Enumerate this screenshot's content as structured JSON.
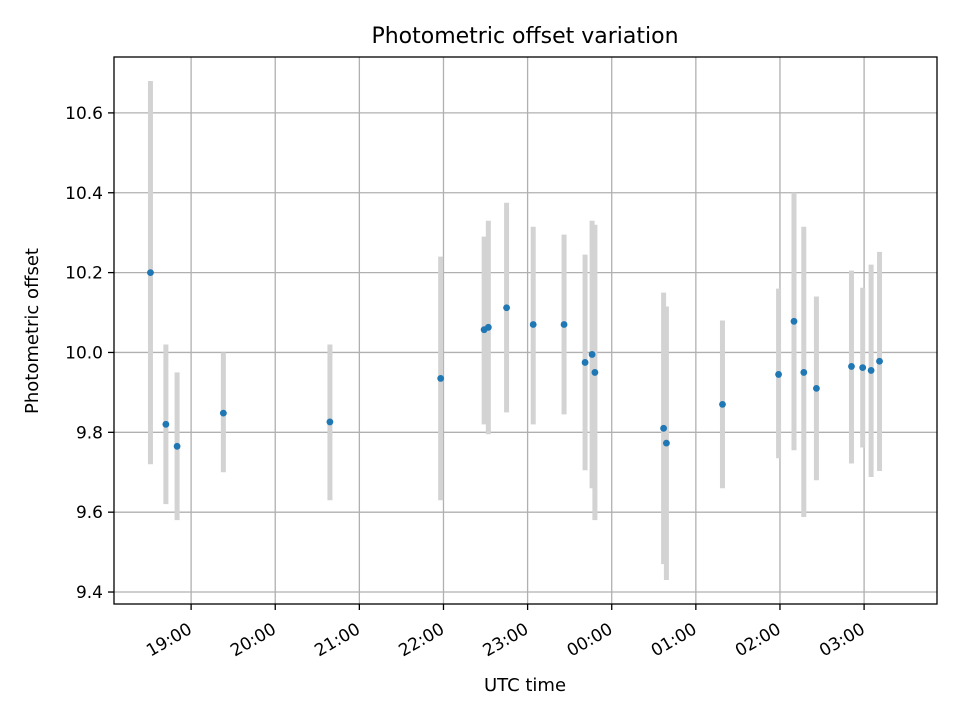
{
  "chart_data": {
    "type": "scatter",
    "title": "Photometric offset variation",
    "xlabel": "UTC time",
    "ylabel": "Photometric offset",
    "x_unit": "hours since 00:00 UTC on first night",
    "xlim": [
      "18:05",
      "03:52"
    ],
    "ylim": [
      9.37,
      10.74
    ],
    "x_ticks": [
      "19:00",
      "20:00",
      "21:00",
      "22:00",
      "23:00",
      "00:00",
      "01:00",
      "02:00",
      "03:00"
    ],
    "y_ticks": [
      "9.4",
      "9.6",
      "9.8",
      "10.0",
      "10.2",
      "10.4",
      "10.6"
    ],
    "grid": true,
    "colors": {
      "point": "#1f77b4",
      "errorbar": "#d3d3d3"
    },
    "points": [
      {
        "t": "18:31",
        "y": 10.2,
        "lo": 9.72,
        "hi": 10.68
      },
      {
        "t": "18:42",
        "y": 9.82,
        "lo": 9.62,
        "hi": 10.02
      },
      {
        "t": "18:50",
        "y": 9.765,
        "lo": 9.58,
        "hi": 9.95
      },
      {
        "t": "19:23",
        "y": 9.848,
        "lo": 9.7,
        "hi": 10.0
      },
      {
        "t": "20:39",
        "y": 9.826,
        "lo": 9.63,
        "hi": 10.02
      },
      {
        "t": "21:58",
        "y": 9.935,
        "lo": 9.63,
        "hi": 10.24
      },
      {
        "t": "22:29",
        "y": 10.057,
        "lo": 9.82,
        "hi": 10.29
      },
      {
        "t": "22:32",
        "y": 10.063,
        "lo": 9.795,
        "hi": 10.33
      },
      {
        "t": "22:45",
        "y": 10.112,
        "lo": 9.85,
        "hi": 10.375
      },
      {
        "t": "23:04",
        "y": 10.07,
        "lo": 9.82,
        "hi": 10.315
      },
      {
        "t": "23:26",
        "y": 10.07,
        "lo": 9.845,
        "hi": 10.295
      },
      {
        "t": "23:41",
        "y": 9.975,
        "lo": 9.705,
        "hi": 10.245
      },
      {
        "t": "23:46",
        "y": 9.995,
        "lo": 9.66,
        "hi": 10.33
      },
      {
        "t": "23:48",
        "y": 9.95,
        "lo": 9.58,
        "hi": 10.32
      },
      {
        "t": "00:37",
        "y": 9.81,
        "lo": 9.47,
        "hi": 10.15
      },
      {
        "t": "00:39",
        "y": 9.773,
        "lo": 9.43,
        "hi": 10.115
      },
      {
        "t": "01:19",
        "y": 9.87,
        "lo": 9.66,
        "hi": 10.08
      },
      {
        "t": "01:59",
        "y": 9.945,
        "lo": 9.735,
        "hi": 10.16
      },
      {
        "t": "02:10",
        "y": 10.078,
        "lo": 9.755,
        "hi": 10.4
      },
      {
        "t": "02:17",
        "y": 9.95,
        "lo": 9.588,
        "hi": 10.315
      },
      {
        "t": "02:26",
        "y": 9.91,
        "lo": 9.68,
        "hi": 10.14
      },
      {
        "t": "02:51",
        "y": 9.965,
        "lo": 9.722,
        "hi": 10.205
      },
      {
        "t": "02:59",
        "y": 9.962,
        "lo": 9.762,
        "hi": 10.162
      },
      {
        "t": "03:05",
        "y": 9.955,
        "lo": 9.688,
        "hi": 10.22
      },
      {
        "t": "03:11",
        "y": 9.978,
        "lo": 9.703,
        "hi": 10.252
      }
    ]
  }
}
